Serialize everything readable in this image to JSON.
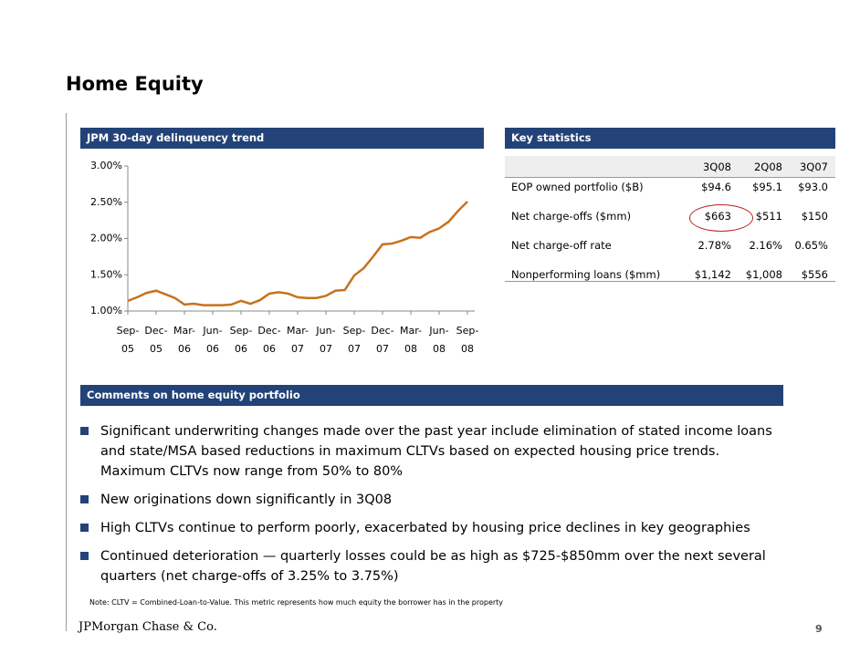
{
  "title": "Home Equity",
  "chart_panel": {
    "heading": "JPM 30-day delinquency trend"
  },
  "chart_data": {
    "type": "line",
    "categories": [
      "Sep-05",
      null,
      null,
      "Dec-05",
      null,
      null,
      "Mar-06",
      null,
      null,
      "Jun-06",
      null,
      null,
      "Sep-06",
      null,
      null,
      "Dec-06",
      null,
      null,
      "Mar-07",
      null,
      null,
      "Jun-07",
      null,
      null,
      "Sep-07",
      null,
      null,
      "Dec-07",
      null,
      null,
      "Mar-08",
      null,
      null,
      "Jun-08",
      null,
      null,
      "Sep-08"
    ],
    "series": [
      {
        "name": "JPM 30-day delinquency",
        "color": "#c8711d",
        "values": [
          1.14,
          1.19,
          1.25,
          1.28,
          1.23,
          1.18,
          1.09,
          1.1,
          1.08,
          1.08,
          1.08,
          1.09,
          1.14,
          1.1,
          1.15,
          1.24,
          1.26,
          1.24,
          1.19,
          1.18,
          1.18,
          1.21,
          1.28,
          1.29,
          1.49,
          1.59,
          1.75,
          1.92,
          1.93,
          1.97,
          2.02,
          2.01,
          2.09,
          2.14,
          2.23,
          2.38,
          2.51
        ]
      }
    ],
    "ylim": [
      1,
      3
    ],
    "yticks": [
      {
        "value": 1,
        "label": "1.00%"
      },
      {
        "value": 1.5,
        "label": "1.50%"
      },
      {
        "value": 2,
        "label": "2.00%"
      },
      {
        "value": 2.5,
        "label": "2.50%"
      },
      {
        "value": 3,
        "label": "3.00%"
      }
    ],
    "grid": false
  },
  "stats": {
    "heading": "Key statistics",
    "header": [
      "3Q08",
      "2Q08",
      "3Q07"
    ],
    "rows": [
      [
        "EOP owned portfolio ($B)",
        "$94.6",
        "$95.1",
        "$93.0"
      ],
      [
        "Net charge-offs ($mm)",
        "$663",
        "$511",
        "$150"
      ],
      [
        "Net charge-off rate",
        "2.78%",
        "2.16%",
        "0.65%"
      ],
      [
        "Nonperforming loans ($mm)",
        "$1,142",
        "$1,008",
        "$556"
      ]
    ]
  },
  "comments": {
    "heading": "Comments on home equity portfolio",
    "bullets": [
      "Significant underwriting changes made over the past year include elimination of stated income loans and state/MSA based reductions in maximum CLTVs based on expected housing price trends. Maximum CLTVs now range from 50% to 80%",
      "New originations down significantly in 3Q08",
      "High CLTVs continue to perform poorly, exacerbated by housing price declines in key geographies",
      "Continued deterioration — quarterly losses could be as high as $725-$850mm over the next several quarters (net charge-offs of 3.25% to 3.75%)"
    ]
  },
  "note": "Note: CLTV = Combined-Loan-to-Value. This metric represents how much equity the borrower has in the property",
  "footer": {
    "brand": "JPMorgan Chase & Co.",
    "page": "9"
  }
}
